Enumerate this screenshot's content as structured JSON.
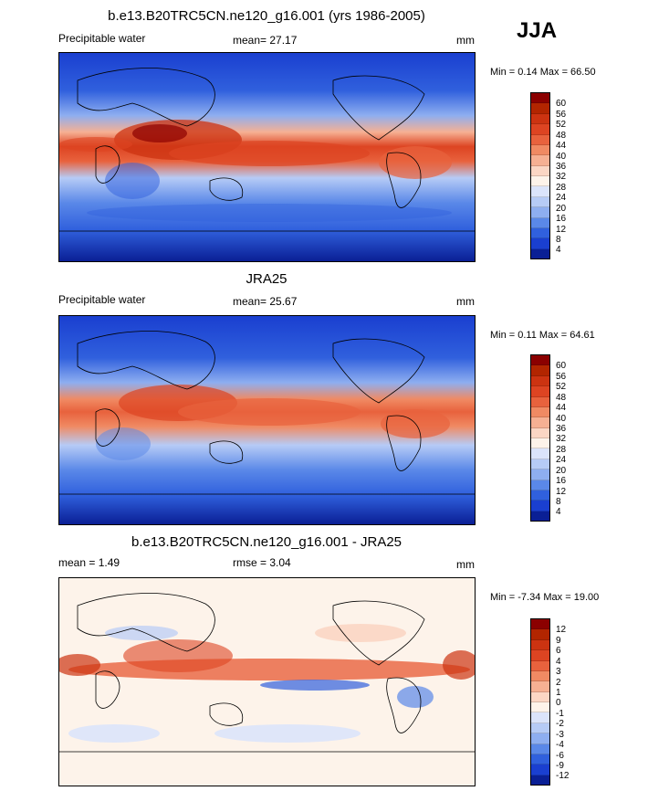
{
  "season": "JJA",
  "panels": [
    {
      "title": "b.e13.B20TRC5CN.ne120_g16.001 (yrs 1986-2005)",
      "left_label": "Precipitable water",
      "mean_text": "mean=  27.17",
      "units": "mm",
      "minmax": "Min =   0.14 Max =  66.50",
      "ticks": [
        "60",
        "56",
        "52",
        "48",
        "44",
        "40",
        "36",
        "32",
        "28",
        "24",
        "20",
        "16",
        "12",
        "8",
        "4"
      ],
      "colors": [
        "#8b0000",
        "#b22500",
        "#cc3311",
        "#dd4422",
        "#e8623d",
        "#f08a63",
        "#f6b093",
        "#fbd6c4",
        "#fdf3ea",
        "#dbe4fb",
        "#b6cbf6",
        "#8eaef0",
        "#5a88e8",
        "#3060dd",
        "#1a3fd0",
        "#0a1f95"
      ]
    },
    {
      "title": "JRA25",
      "left_label": "Precipitable water",
      "mean_text": "mean=  25.67",
      "units": "mm",
      "minmax": "Min =   0.11 Max =  64.61",
      "ticks": [
        "60",
        "56",
        "52",
        "48",
        "44",
        "40",
        "36",
        "32",
        "28",
        "24",
        "20",
        "16",
        "12",
        "8",
        "4"
      ],
      "colors": [
        "#8b0000",
        "#b22500",
        "#cc3311",
        "#dd4422",
        "#e8623d",
        "#f08a63",
        "#f6b093",
        "#fbd6c4",
        "#fdf3ea",
        "#dbe4fb",
        "#b6cbf6",
        "#8eaef0",
        "#5a88e8",
        "#3060dd",
        "#1a3fd0",
        "#0a1f95"
      ]
    },
    {
      "title": "b.e13.B20TRC5CN.ne120_g16.001 - JRA25",
      "left_label": "mean =   1.49",
      "mean_text": "rmse =   3.04",
      "units": "mm",
      "minmax": "Min =  -7.34 Max =  19.00",
      "ticks": [
        "12",
        "9",
        "6",
        "4",
        "3",
        "2",
        "1",
        "0",
        "-1",
        "-2",
        "-3",
        "-4",
        "-6",
        "-9",
        "-12"
      ],
      "colors": [
        "#8b0000",
        "#b22500",
        "#cc3311",
        "#dd4422",
        "#e8623d",
        "#f08a63",
        "#f6b093",
        "#fbd6c4",
        "#fdf3ea",
        "#dbe4fb",
        "#b6cbf6",
        "#8eaef0",
        "#5a88e8",
        "#3060dd",
        "#1a3fd0",
        "#0a1f95"
      ]
    }
  ]
}
